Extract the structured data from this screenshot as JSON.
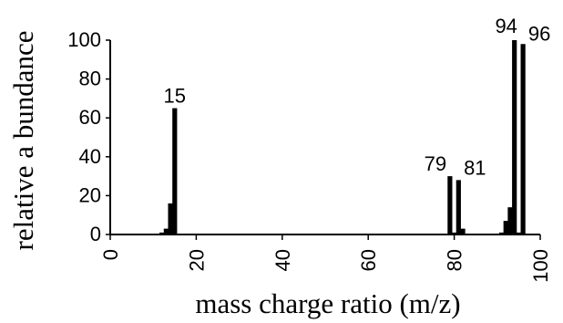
{
  "chart_data": {
    "type": "bar",
    "title": "",
    "xlabel": "mass charge ratio (m/z)",
    "ylabel": "relative a bundance",
    "xlim": [
      0,
      100
    ],
    "ylim": [
      0,
      100
    ],
    "xticks": [
      "0",
      "20",
      "40",
      "60",
      "80",
      "100"
    ],
    "yticks": [
      "0",
      "20",
      "40",
      "60",
      "80",
      "100"
    ],
    "grid": false,
    "legend": "none",
    "bar_color": "#000000",
    "series": [
      {
        "x": [
          12,
          13,
          14,
          15,
          79,
          80,
          81,
          82,
          91,
          92,
          93,
          94,
          95,
          96
        ],
        "values": [
          1,
          3,
          16,
          65,
          30,
          1,
          28,
          3,
          1,
          7,
          14,
          100,
          1,
          98
        ]
      }
    ],
    "annotations": [
      {
        "x": 15,
        "text": "15"
      },
      {
        "x": 79,
        "text": "79"
      },
      {
        "x": 81,
        "text": "81"
      },
      {
        "x": 94,
        "text": "94"
      },
      {
        "x": 96,
        "text": "96"
      }
    ]
  }
}
